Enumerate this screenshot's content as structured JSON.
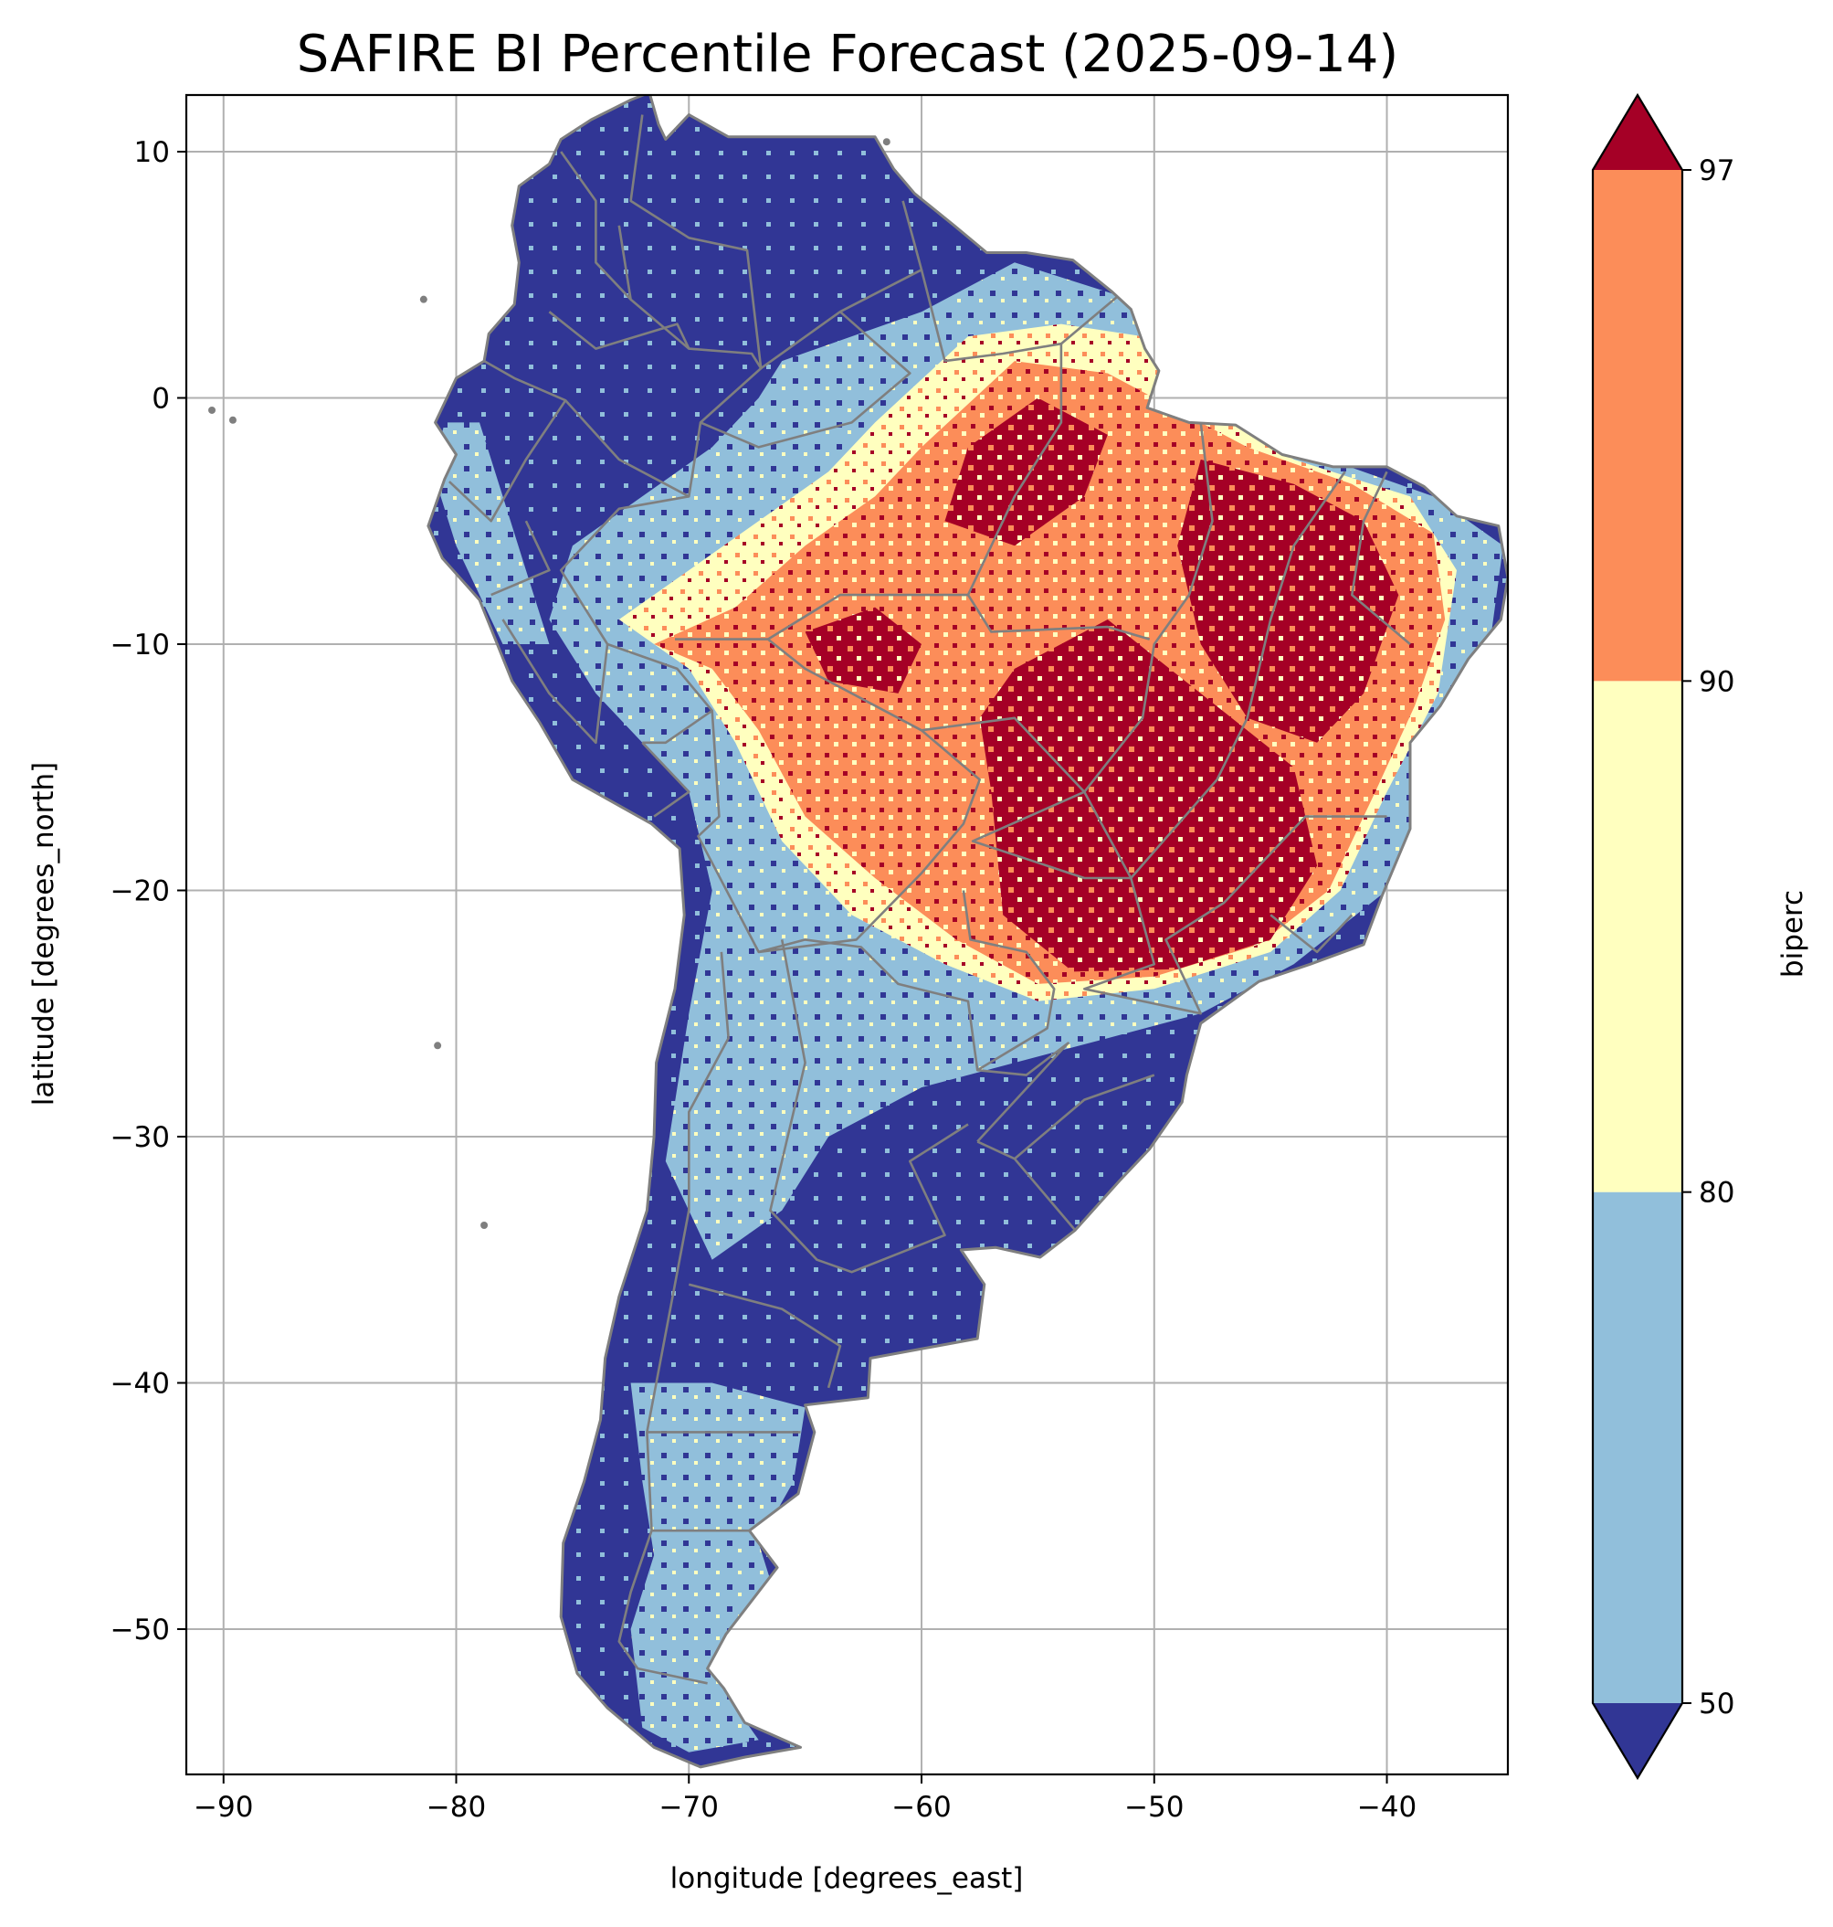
{
  "chart_data": {
    "type": "heatmap",
    "title": "SAFIRE BI Percentile Forecast (2025-09-14)",
    "xlabel": "longitude [degrees_east]",
    "ylabel": "latitude [degrees_north]",
    "xlim": [
      -91.6,
      -34.8
    ],
    "ylim": [
      -55.9,
      12.3
    ],
    "xticks": [
      -90,
      -80,
      -70,
      -60,
      -50,
      -40
    ],
    "yticks": [
      10,
      0,
      -10,
      -20,
      -30,
      -40,
      -50
    ],
    "xtick_labels": [
      "−90",
      "−80",
      "−70",
      "−60",
      "−50",
      "−40"
    ],
    "ytick_labels": [
      "10",
      "0",
      "−10",
      "−20",
      "−30",
      "−40",
      "−50"
    ],
    "grid": true,
    "colorbar": {
      "label": "biperc",
      "ticks": [
        50,
        80,
        90,
        97
      ],
      "tick_labels": [
        "50",
        "80",
        "90",
        "97"
      ],
      "extend": "both",
      "bins": [
        {
          "range": "<50",
          "color": "#313695"
        },
        {
          "range": "50-80",
          "color": "#91bfdb"
        },
        {
          "range": "80-90",
          "color": "#ffffbf"
        },
        {
          "range": "90-97",
          "color": "#fc8d59"
        },
        {
          "range": ">97",
          "color": "#a50026"
        }
      ]
    },
    "regions": [
      {
        "level": ">97",
        "lon": -49.0,
        "lat": -18.0
      },
      {
        "level": ">97",
        "lon": -44.5,
        "lat": -7.5
      },
      {
        "level": ">97",
        "lon": -54.5,
        "lat": -3.5
      },
      {
        "level": "90-97",
        "lon": -62.0,
        "lat": -12.0
      },
      {
        "level": "80-90",
        "lon": -57.5,
        "lat": -1.5
      },
      {
        "level": "50-80",
        "lon": -67.0,
        "lat": -8.0
      },
      {
        "level": "50-80",
        "lon": -66.5,
        "lat": -48.0
      },
      {
        "level": "<50",
        "lon": -72.0,
        "lat": 3.0
      },
      {
        "level": "<50",
        "lon": -63.0,
        "lat": -36.0
      }
    ]
  }
}
